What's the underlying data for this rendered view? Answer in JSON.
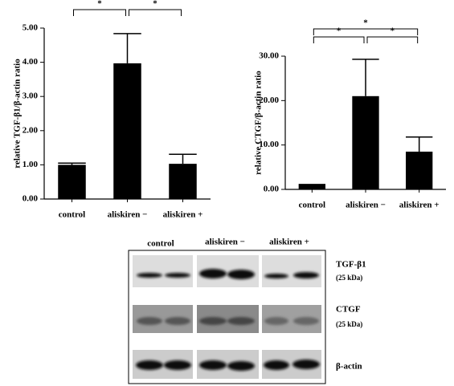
{
  "chart_data": [
    {
      "type": "bar",
      "y_label": "relative TGF-β1/β-actin ratio",
      "categories": [
        "control",
        "aliskiren −",
        "aliskiren +"
      ],
      "values": [
        1.0,
        3.97,
        1.03
      ],
      "errors": [
        0.05,
        0.87,
        0.28
      ],
      "color": "#000000",
      "ylim": [
        0,
        5
      ],
      "yticks": [
        {
          "value": 0,
          "label": "0.00"
        },
        {
          "value": 1,
          "label": "1.00"
        },
        {
          "value": 2,
          "label": "2.00"
        },
        {
          "value": 3,
          "label": "3.00"
        },
        {
          "value": 4,
          "label": "4.00"
        },
        {
          "value": 5,
          "label": "5.00"
        }
      ],
      "annotations": [
        {
          "between": [
            0,
            1
          ],
          "label": "*"
        },
        {
          "between": [
            1,
            2
          ],
          "label": "*"
        }
      ]
    },
    {
      "type": "bar",
      "y_label": "relative CTGF/β-actin ratio",
      "categories": [
        "control",
        "aliskiren −",
        "aliskiren +"
      ],
      "values": [
        1.0,
        21.0,
        8.5
      ],
      "errors": [
        0.1,
        8.3,
        3.3
      ],
      "color": "#000000",
      "ylim": [
        0,
        30
      ],
      "yticks": [
        {
          "value": 0,
          "label": "0.00"
        },
        {
          "value": 10,
          "label": "10.00"
        },
        {
          "value": 20,
          "label": "20.00"
        },
        {
          "value": 30,
          "label": "30.00"
        }
      ],
      "annotations": [
        {
          "between": [
            0,
            1
          ],
          "label": "*"
        },
        {
          "between": [
            1,
            2
          ],
          "label": "*"
        },
        {
          "between": [
            0,
            2
          ],
          "label": "*"
        }
      ]
    }
  ],
  "blot": {
    "columns": [
      "control",
      "aliskiren −",
      "aliskiren +"
    ],
    "rows": [
      {
        "label": "TGF-β1",
        "size": "(25 kDa)"
      },
      {
        "label": "CTGF",
        "size": "(25 kDa)"
      },
      {
        "label": "β-actin"
      }
    ]
  }
}
